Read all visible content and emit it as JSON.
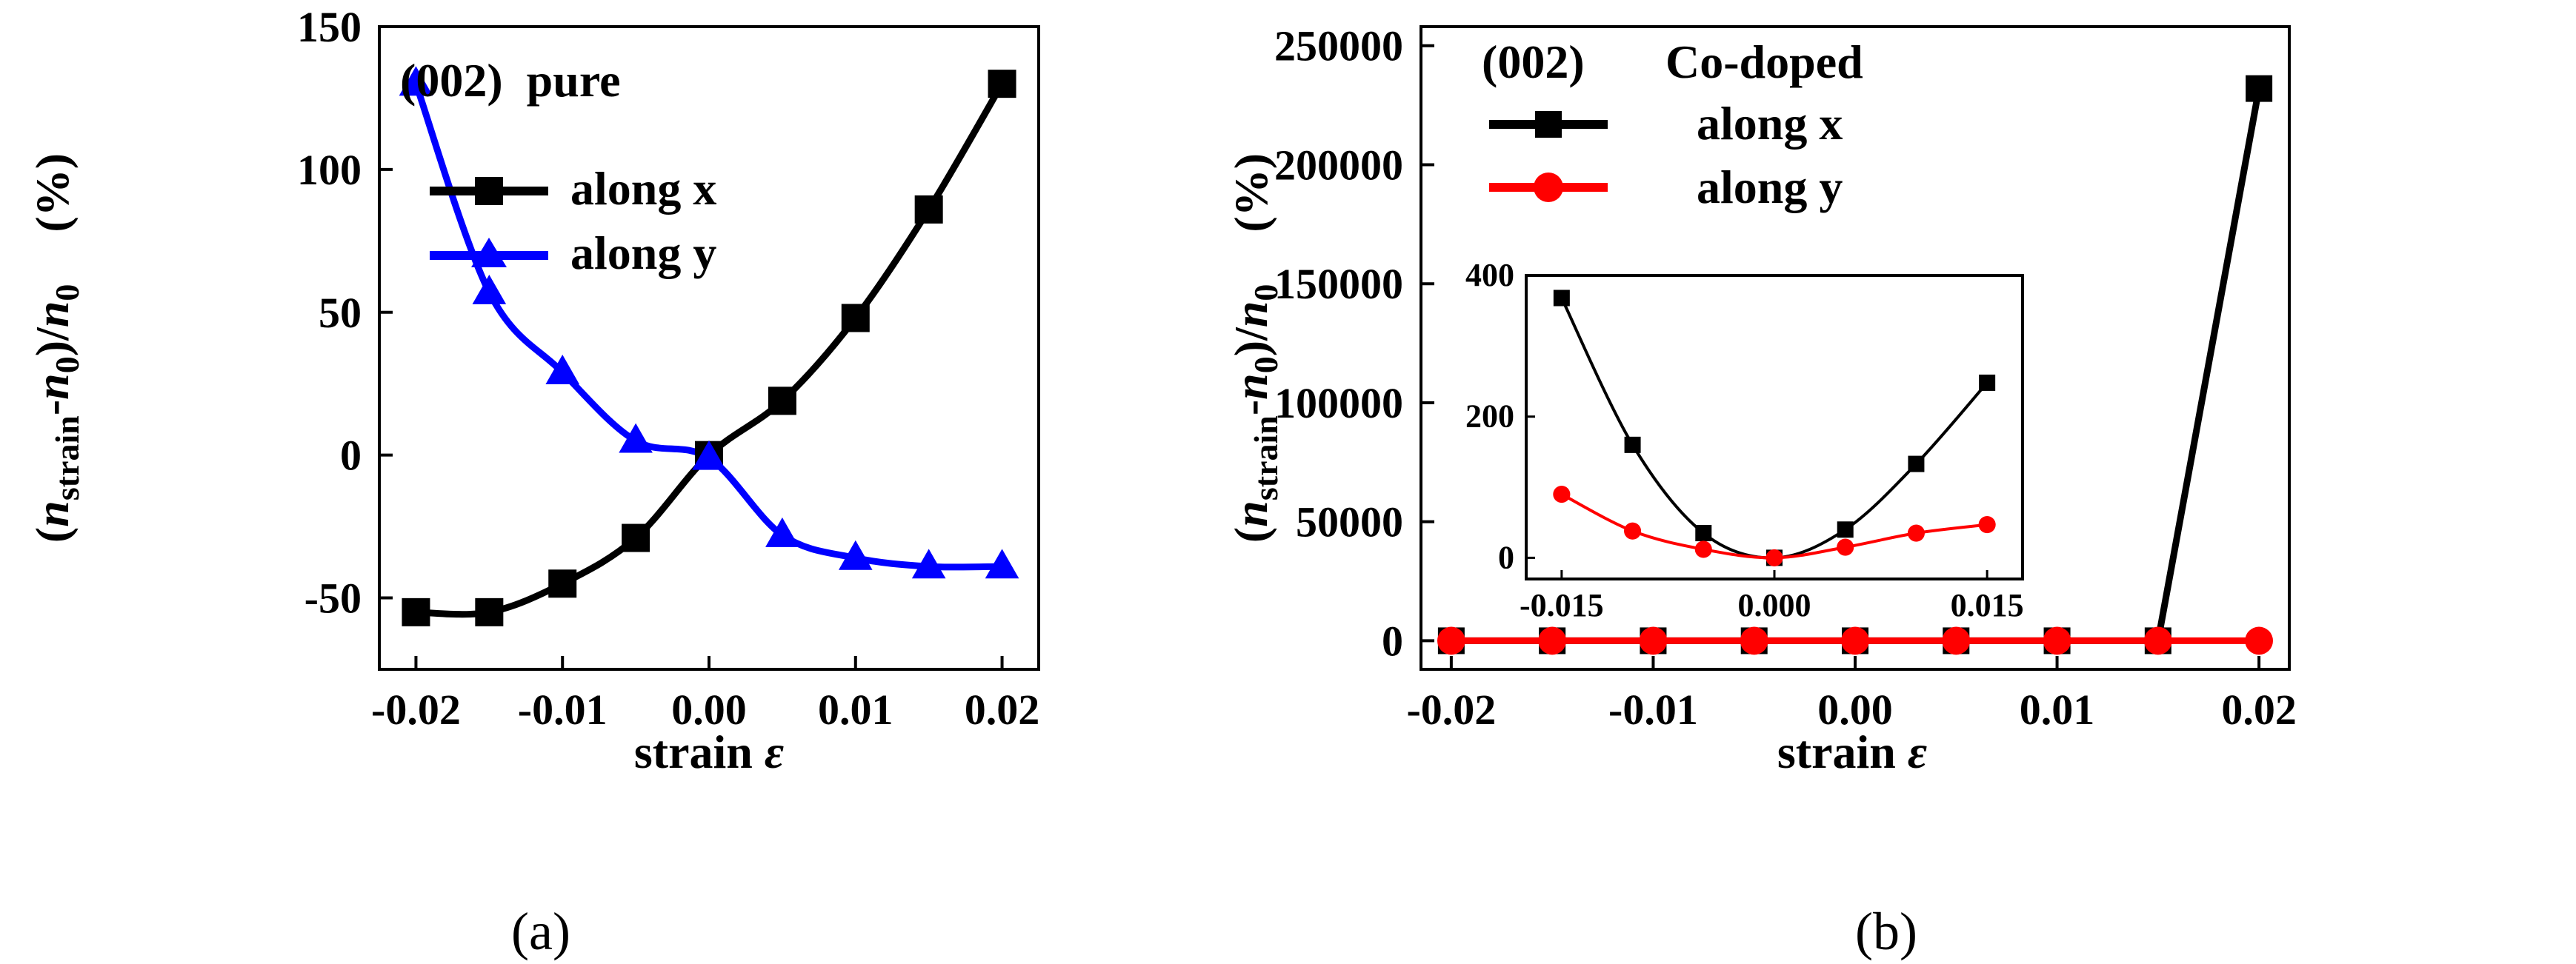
{
  "chart_data": [
    {
      "panel": "a",
      "type": "line",
      "caption": "(a)",
      "annotation": "(002)  pure",
      "xlabel": "strain ε",
      "ylabel": "(nstrain-n0)/n0    (%)",
      "ylabel_parts": {
        "open": "(",
        "n1": "n",
        "sub1": "strain",
        "mid": "-",
        "n2": "n",
        "sub2": "0",
        "close": ")/",
        "n3": "n",
        "sub3": "0",
        "unit": "(%)"
      },
      "xlabel_parts": {
        "text": "strain ",
        "sym": "ε"
      },
      "xlim": [
        -0.0225,
        0.0225
      ],
      "ylim": [
        -75,
        150
      ],
      "xticks": [
        -0.02,
        -0.01,
        0.0,
        0.01,
        0.02
      ],
      "xtick_labels": [
        "-0.02",
        "-0.01",
        "0.00",
        "0.01",
        "0.02"
      ],
      "yticks": [
        -50,
        0,
        50,
        100,
        150
      ],
      "ytick_labels": [
        "-50",
        "0",
        "50",
        "100",
        "150"
      ],
      "x": [
        -0.02,
        -0.015,
        -0.01,
        -0.005,
        0.0,
        0.005,
        0.01,
        0.015,
        0.02
      ],
      "series": [
        {
          "name": "along x",
          "color": "#000000",
          "marker": "square",
          "values": [
            -55,
            -55,
            -45,
            -29,
            0,
            19,
            48,
            86,
            130
          ]
        },
        {
          "name": "along y",
          "color": "#0000ff",
          "marker": "triangle",
          "values": [
            130,
            57,
            29,
            5,
            -1,
            -28,
            -36,
            -39,
            -39
          ]
        }
      ]
    },
    {
      "panel": "b",
      "type": "line",
      "caption": "(b)",
      "annotation": "(002)",
      "annotation2": "Co-doped",
      "xlabel": "strain ε",
      "ylabel": "(nstrain-n0)/n0    (%)",
      "ylabel_parts": {
        "open": "(",
        "n1": "n",
        "sub1": "strain",
        "mid": "-",
        "n2": "n",
        "sub2": "0",
        "close": ")/",
        "n3": "n",
        "sub3": "0",
        "unit": "(%)"
      },
      "xlabel_parts": {
        "text": "strain ",
        "sym": "ε"
      },
      "xlim": [
        -0.0215,
        0.0215
      ],
      "ylim": [
        -12000,
        258000
      ],
      "xticks": [
        -0.02,
        -0.01,
        0.0,
        0.01,
        0.02
      ],
      "xtick_labels": [
        "-0.02",
        "-0.01",
        "0.00",
        "0.01",
        "0.02"
      ],
      "yticks": [
        0,
        50000,
        100000,
        150000,
        200000,
        250000
      ],
      "ytick_labels": [
        "0",
        "50000",
        "100000",
        "150000",
        "200000",
        "250000"
      ],
      "x": [
        -0.02,
        -0.015,
        -0.01,
        -0.005,
        0.0,
        0.005,
        0.01,
        0.015,
        0.02
      ],
      "series": [
        {
          "name": "along x",
          "color": "#000000",
          "marker": "square",
          "values": [
            0,
            0,
            0,
            0,
            0,
            0,
            0,
            0,
            232000
          ]
        },
        {
          "name": "along y",
          "color": "#ff0000",
          "marker": "circle",
          "values": [
            0,
            0,
            0,
            0,
            0,
            0,
            0,
            0,
            0
          ]
        }
      ],
      "inset": {
        "xlim": [
          -0.0175,
          0.0175
        ],
        "ylim": [
          -30,
          400
        ],
        "xticks": [
          -0.015,
          0.0,
          0.015
        ],
        "xtick_labels": [
          "-0.015",
          "0.000",
          "0.015"
        ],
        "yticks": [
          0,
          200,
          400
        ],
        "ytick_labels": [
          "0",
          "200",
          "400"
        ],
        "x": [
          -0.015,
          -0.01,
          -0.005,
          0.0,
          0.005,
          0.01,
          0.015
        ],
        "series": [
          {
            "name": "along x",
            "color": "#000000",
            "marker": "square",
            "values": [
              368,
              160,
              35,
              0,
              40,
              133,
              248
            ]
          },
          {
            "name": "along y",
            "color": "#ff0000",
            "marker": "circle",
            "values": [
              90,
              38,
              12,
              0,
              15,
              35,
              47
            ]
          }
        ]
      }
    }
  ]
}
